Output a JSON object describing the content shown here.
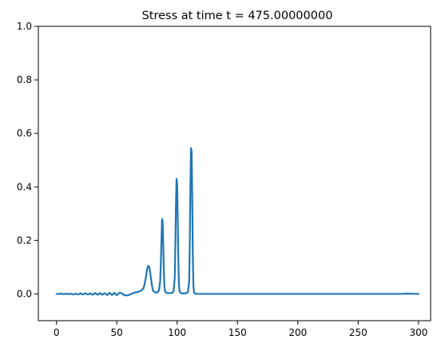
{
  "chart_data": {
    "type": "line",
    "title": "Stress at time t =   475.00000000",
    "xlabel": "",
    "ylabel": "",
    "xlim": [
      -15,
      310
    ],
    "ylim": [
      -0.1,
      1.0
    ],
    "x_ticks": [
      "0",
      "50",
      "100",
      "150",
      "200",
      "250",
      "300"
    ],
    "x_tick_values": [
      0,
      50,
      100,
      150,
      200,
      250,
      300
    ],
    "y_ticks": [
      "0.0",
      "0.2",
      "0.4",
      "0.6",
      "0.8",
      "1.0"
    ],
    "y_tick_values": [
      0.0,
      0.2,
      0.4,
      0.6,
      0.8,
      1.0
    ],
    "grid": false,
    "line_color": "#1f77b4",
    "series": [
      {
        "x": [
          0,
          2,
          4,
          6,
          8,
          10,
          12,
          14,
          16,
          18,
          20,
          22,
          24,
          26,
          28,
          30,
          32,
          34,
          36,
          38,
          40,
          42,
          44,
          46,
          48,
          50,
          52,
          54,
          56,
          58,
          60,
          62,
          64,
          66,
          68,
          70,
          72,
          73,
          74,
          75,
          76,
          77,
          78,
          79,
          80,
          82,
          84,
          85,
          86,
          86.5,
          87,
          87.5,
          88,
          88.5,
          89,
          89.5,
          90,
          91,
          92,
          94,
          96,
          97,
          98,
          98.5,
          99,
          99.5,
          100,
          100.5,
          101,
          101.5,
          102,
          103,
          104,
          106,
          108,
          109,
          110,
          110.5,
          111,
          111.5,
          112,
          112.5,
          113,
          113.5,
          114,
          115,
          116,
          118,
          120,
          125,
          130,
          150,
          200,
          250,
          285,
          290,
          300
        ],
        "y": [
          0.0,
          0.0,
          0.001,
          -0.001,
          0.001,
          -0.001,
          0.001,
          -0.002,
          0.001,
          -0.002,
          0.002,
          -0.002,
          0.002,
          -0.002,
          0.002,
          -0.003,
          0.003,
          -0.003,
          0.003,
          -0.003,
          0.003,
          -0.004,
          0.004,
          -0.004,
          0.004,
          -0.005,
          0.004,
          0.003,
          -0.004,
          -0.006,
          -0.004,
          0.0,
          0.004,
          0.006,
          0.008,
          0.012,
          0.02,
          0.035,
          0.06,
          0.09,
          0.105,
          0.1,
          0.07,
          0.035,
          0.012,
          0.005,
          0.006,
          0.015,
          0.05,
          0.12,
          0.2,
          0.28,
          0.27,
          0.18,
          0.08,
          0.025,
          0.01,
          0.004,
          0.003,
          0.003,
          0.004,
          0.01,
          0.06,
          0.18,
          0.33,
          0.43,
          0.41,
          0.28,
          0.12,
          0.035,
          0.01,
          0.003,
          0.002,
          0.002,
          0.003,
          0.008,
          0.05,
          0.2,
          0.42,
          0.545,
          0.53,
          0.36,
          0.14,
          0.03,
          0.005,
          0.001,
          0.0,
          0.0,
          0.0,
          0.0,
          0.0,
          0.0,
          0.0,
          0.0,
          0.0,
          0.001,
          0.0
        ]
      }
    ]
  }
}
